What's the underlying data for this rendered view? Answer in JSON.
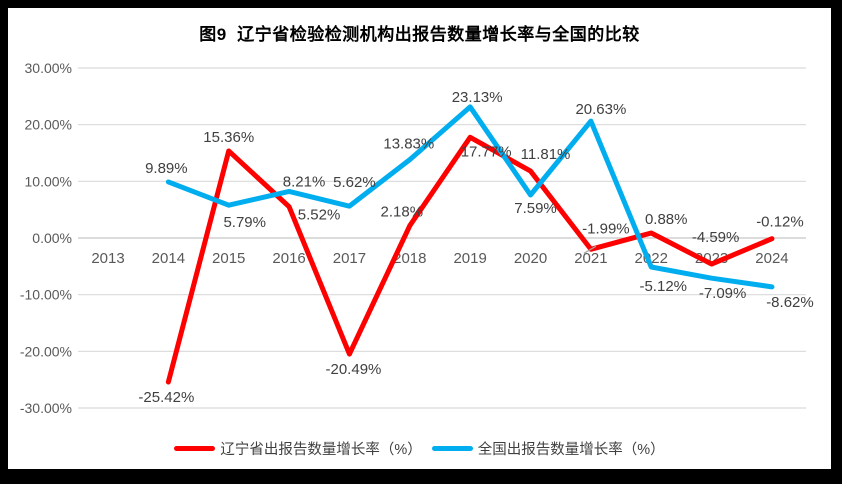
{
  "chart_data": {
    "type": "line",
    "title": "图9  辽宁省检验检测机构出报告数量增长率与全国的比较",
    "categories": [
      "2013",
      "2014",
      "2015",
      "2016",
      "2017",
      "2018",
      "2019",
      "2020",
      "2021",
      "2022",
      "2023",
      "2024"
    ],
    "ylim": [
      -30,
      30
    ],
    "grid": true,
    "legend_position": "bottom",
    "y_ticks": [
      {
        "v": 30,
        "label": "30.00%"
      },
      {
        "v": 20,
        "label": "20.00%"
      },
      {
        "v": 10,
        "label": "10.00%"
      },
      {
        "v": 0,
        "label": "0.00%"
      },
      {
        "v": -10,
        "label": "-10.00%"
      },
      {
        "v": -20,
        "label": "-20.00%"
      },
      {
        "v": -30,
        "label": "-30.00%"
      }
    ],
    "colors": {
      "grid": "#D9D9D9",
      "zero_line": "#C6C6C6",
      "data_label": "#404040",
      "axis_label": "#595959",
      "title": "#000000",
      "leader": "#A6A6A6",
      "frame": "#000000",
      "background": "#FFFFFF"
    },
    "series": [
      {
        "name": "辽宁省出报告数量增长率（%）",
        "color": "#FE0000",
        "values": [
          null,
          -25.42,
          15.36,
          5.52,
          -20.49,
          2.18,
          17.77,
          11.81,
          -1.99,
          0.88,
          -4.59,
          -0.12
        ],
        "labels": [
          null,
          {
            "t": "-25.42%",
            "pos": "below",
            "dx": -2,
            "dy": 0
          },
          {
            "t": "15.36%",
            "pos": "above",
            "dx": 0,
            "dy": 0
          },
          {
            "t": "5.52%",
            "pos": "below",
            "dx": 30,
            "dy": -7
          },
          {
            "t": "-20.49%",
            "pos": "below",
            "dx": 4,
            "dy": 0
          },
          {
            "t": "2.18%",
            "pos": "above",
            "dx": -8,
            "dy": 0
          },
          {
            "t": "17.77%",
            "pos": "below",
            "dx": 16,
            "dy": -1
          },
          {
            "t": "11.81%",
            "pos": "above",
            "dx": 15,
            "dy": -3
          },
          {
            "t": "-1.99%",
            "pos": "above",
            "dx": 15,
            "dy": -7,
            "leader": true
          },
          {
            "t": "0.88%",
            "pos": "above",
            "dx": 15,
            "dy": 0
          },
          {
            "t": "-4.59%",
            "pos": "above",
            "dx": 4,
            "dy": -13
          },
          {
            "t": "-0.12%",
            "pos": "above",
            "dx": 8,
            "dy": -3
          }
        ]
      },
      {
        "name": "全国出报告数量增长率（%）",
        "color": "#00AEEF",
        "values": [
          null,
          9.89,
          5.79,
          8.21,
          5.62,
          13.83,
          23.13,
          7.59,
          20.63,
          -5.12,
          -7.09,
          -8.62
        ],
        "labels": [
          null,
          {
            "t": "9.89%",
            "pos": "above",
            "dx": -2,
            "dy": 0
          },
          {
            "t": "5.79%",
            "pos": "below",
            "dx": 16,
            "dy": 2
          },
          {
            "t": "8.21%",
            "pos": "above",
            "dx": 15,
            "dy": 4
          },
          {
            "t": "5.62%",
            "pos": "above",
            "dx": 5,
            "dy": -10
          },
          {
            "t": "13.83%",
            "pos": "above",
            "dx": -1,
            "dy": -2
          },
          {
            "t": "23.13%",
            "pos": "above",
            "dx": 7,
            "dy": 4
          },
          {
            "t": "7.59%",
            "pos": "below",
            "dx": 5,
            "dy": -2
          },
          {
            "t": "20.63%",
            "pos": "above",
            "dx": 10,
            "dy": 2
          },
          {
            "t": "-5.12%",
            "pos": "below",
            "dx": 12,
            "dy": 4
          },
          {
            "t": "-7.09%",
            "pos": "below",
            "dx": 11,
            "dy": 0
          },
          {
            "t": "-8.62%",
            "pos": "below",
            "dx": 18,
            "dy": 0
          }
        ]
      }
    ]
  }
}
